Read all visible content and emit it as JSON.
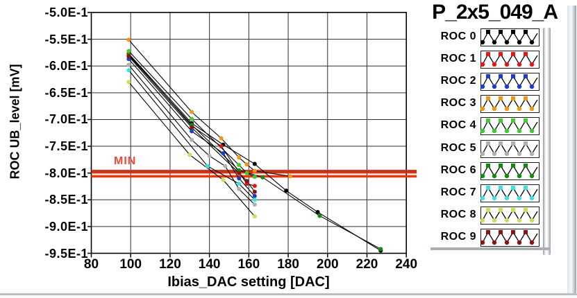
{
  "title": "P_2x5_049_A",
  "min_marker": {
    "label": "MIN",
    "text_color": "#f0473a"
  },
  "axes": {
    "x": {
      "title": "Ibias_DAC setting [DAC]",
      "tick_labels": [
        "80",
        "100",
        "120",
        "140",
        "160",
        "180",
        "200",
        "220",
        "240"
      ],
      "tick_values": [
        80,
        100,
        120,
        140,
        160,
        180,
        200,
        220,
        240
      ]
    },
    "y": {
      "title": "ROC UB_level [mV]",
      "tick_labels": [
        "-5.0E-1",
        "-5.5E-1",
        "-6.0E-1",
        "-6.5E-1",
        "-7.0E-1",
        "-7.5E-1",
        "-8.0E-1",
        "-8.5E-1",
        "-9.0E-1",
        "-9.5E-1"
      ],
      "tick_values": [
        -0.5,
        -0.55,
        -0.6,
        -0.65,
        -0.7,
        -0.75,
        -0.8,
        -0.85,
        -0.9,
        -0.95
      ]
    }
  },
  "colors": {
    "grid": "#2e2e2e",
    "frame": "#000000",
    "series_line": "#000000",
    "min_line_upper": "#e63119",
    "min_line_lower": "#ea3a0d",
    "min_line_core": "#3a2408"
  },
  "legend": {
    "position": "right",
    "items": [
      {
        "label": "ROC 0",
        "color": "#000000"
      },
      {
        "label": "ROC 1",
        "color": "#e01818"
      },
      {
        "label": "ROC 2",
        "color": "#1e3ccc"
      },
      {
        "label": "ROC 3",
        "color": "#f09614"
      },
      {
        "label": "ROC 4",
        "color": "#3ecc2e"
      },
      {
        "label": "ROC 5",
        "color": "#b0b0b0"
      },
      {
        "label": "ROC 6",
        "color": "#0e8c0e"
      },
      {
        "label": "ROC 7",
        "color": "#3fe0e0"
      },
      {
        "label": "ROC 8",
        "color": "#c6e05c"
      },
      {
        "label": "ROC 9",
        "color": "#8c1111"
      }
    ]
  },
  "chart_data": {
    "type": "line",
    "title": "P_2x5_049_A",
    "xlabel": "Ibias_DAC setting [DAC]",
    "ylabel": "ROC UB_level [mV]",
    "xlim": [
      80,
      240
    ],
    "ylim": [
      -0.95,
      -0.5
    ],
    "grid": true,
    "legend_position": "right",
    "y_format": "scientific E-1",
    "line_color": "#000000",
    "reference_lines": [
      {
        "label": "MIN",
        "y": -0.797,
        "color": "#e63119",
        "style": "double"
      },
      {
        "label": "",
        "y": -0.806,
        "color": "#ea3a0d",
        "style": "single"
      }
    ],
    "series": [
      {
        "name": "ROC 0",
        "marker_color": "#000000",
        "points": [
          [
            99,
            -0.577
          ],
          [
            131,
            -0.707
          ],
          [
            147,
            -0.747
          ],
          [
            163,
            -0.783
          ],
          [
            179,
            -0.833
          ],
          [
            195,
            -0.873
          ],
          [
            227,
            -0.945
          ]
        ]
      },
      {
        "name": "ROC 1",
        "marker_color": "#e01818",
        "points": [
          [
            99,
            -0.578
          ],
          [
            131,
            -0.712
          ],
          [
            146,
            -0.75
          ],
          [
            159,
            -0.82
          ],
          [
            163,
            -0.824
          ]
        ]
      },
      {
        "name": "ROC 2",
        "marker_color": "#1e3ccc",
        "points": [
          [
            99,
            -0.587
          ],
          [
            131,
            -0.722
          ],
          [
            147,
            -0.763
          ],
          [
            155,
            -0.81
          ],
          [
            163,
            -0.843
          ]
        ]
      },
      {
        "name": "ROC 3",
        "marker_color": "#f09614",
        "points": [
          [
            99,
            -0.551
          ],
          [
            131,
            -0.686
          ],
          [
            146,
            -0.735
          ],
          [
            155,
            -0.771
          ],
          [
            159,
            -0.784
          ],
          [
            163,
            -0.796
          ],
          [
            181,
            -0.806
          ]
        ]
      },
      {
        "name": "ROC 4",
        "marker_color": "#3ecc2e",
        "points": [
          [
            99,
            -0.572
          ],
          [
            131,
            -0.699
          ],
          [
            155,
            -0.785
          ],
          [
            159,
            -0.8
          ],
          [
            163,
            -0.807
          ]
        ]
      },
      {
        "name": "ROC 5",
        "marker_color": "#b0b0b0",
        "points": [
          [
            99,
            -0.598
          ],
          [
            131,
            -0.738
          ],
          [
            140,
            -0.768
          ],
          [
            148,
            -0.787
          ],
          [
            155,
            -0.83
          ],
          [
            163,
            -0.859
          ]
        ]
      },
      {
        "name": "ROC 6",
        "marker_color": "#0e8c0e",
        "points": [
          [
            99,
            -0.58
          ],
          [
            131,
            -0.71
          ],
          [
            155,
            -0.795
          ],
          [
            167,
            -0.808
          ],
          [
            196,
            -0.88
          ],
          [
            227,
            -0.942
          ]
        ]
      },
      {
        "name": "ROC 7",
        "marker_color": "#3fe0e0",
        "points": [
          [
            99,
            -0.608
          ],
          [
            139,
            -0.787
          ],
          [
            155,
            -0.82
          ],
          [
            163,
            -0.85
          ]
        ]
      },
      {
        "name": "ROC 8",
        "marker_color": "#c6e05c",
        "points": [
          [
            99,
            -0.63
          ],
          [
            130,
            -0.766
          ],
          [
            147,
            -0.813
          ],
          [
            163,
            -0.881
          ]
        ]
      },
      {
        "name": "ROC 9",
        "marker_color": "#8c1111",
        "points": [
          [
            99,
            -0.582
          ],
          [
            131,
            -0.715
          ],
          [
            155,
            -0.8
          ],
          [
            159,
            -0.815
          ],
          [
            163,
            -0.835
          ]
        ]
      }
    ]
  }
}
